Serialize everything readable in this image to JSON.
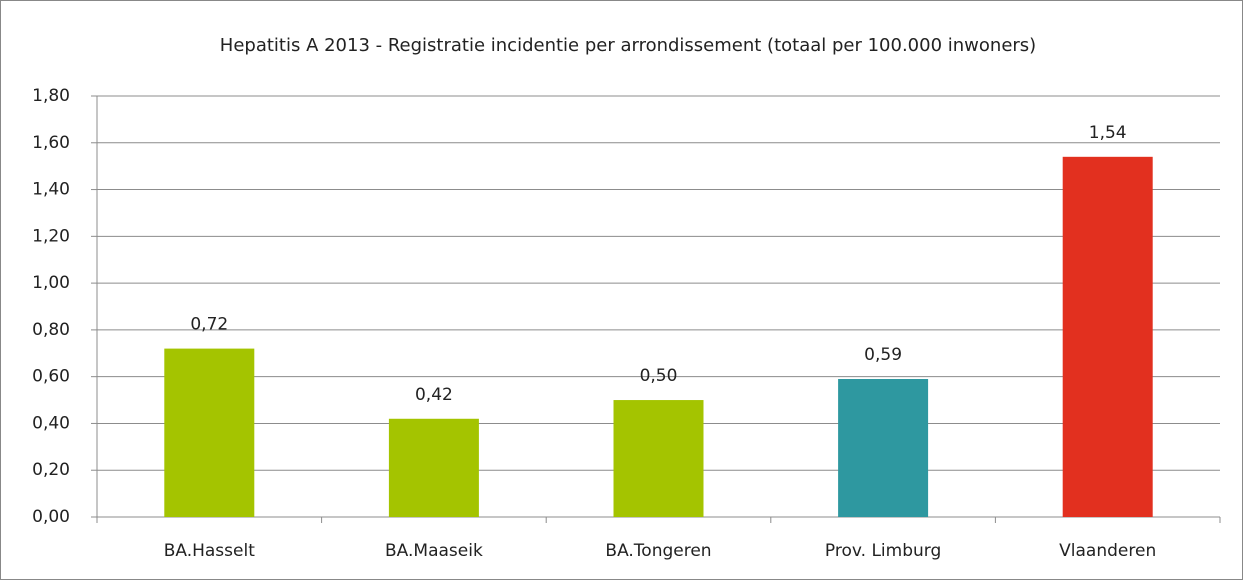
{
  "chart_data": {
    "type": "bar",
    "title": "Hepatitis A 2013 - Registratie incidentie per arrondissement (totaal per 100.000 inwoners)",
    "categories": [
      "BA.Hasselt",
      "BA.Maaseik",
      "BA.Tongeren",
      "Prov. Limburg",
      "Vlaanderen"
    ],
    "values": [
      0.72,
      0.42,
      0.5,
      0.59,
      1.54
    ],
    "value_labels": [
      "0,72",
      "0,42",
      "0,50",
      "0,59",
      "1,54"
    ],
    "colors": [
      "#a4c400",
      "#a4c400",
      "#a4c400",
      "#2e98a0",
      "#e2301f"
    ],
    "ylim": [
      0,
      1.8
    ],
    "yticks": [
      {
        "value": 0,
        "label": "0,00"
      },
      {
        "value": 0.2,
        "label": "0,20"
      },
      {
        "value": 0.4,
        "label": "0,40"
      },
      {
        "value": 0.6,
        "label": "0,60"
      },
      {
        "value": 0.8,
        "label": "0,80"
      },
      {
        "value": 1.0,
        "label": "1,00"
      },
      {
        "value": 1.2,
        "label": "1,20"
      },
      {
        "value": 1.4,
        "label": "1,40"
      },
      {
        "value": 1.6,
        "label": "1,60"
      },
      {
        "value": 1.8,
        "label": "1,80"
      }
    ],
    "grid": true
  }
}
